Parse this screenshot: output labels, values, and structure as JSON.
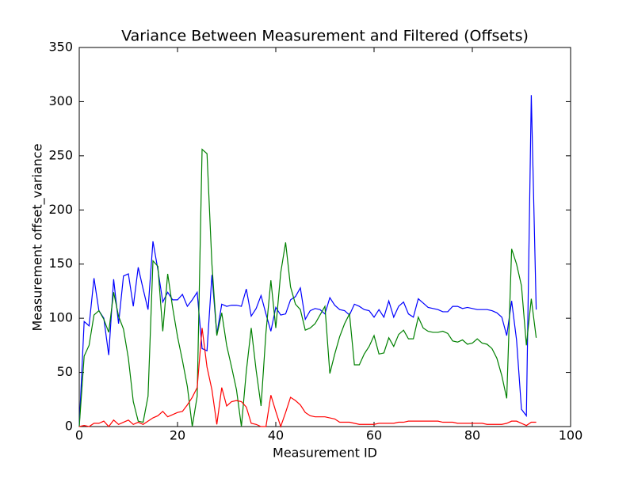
{
  "chart_data": {
    "type": "line",
    "title": "Variance Between Measurement and Filtered (Offsets)",
    "xlabel": "Measurement ID",
    "ylabel": "Measurement offset_variance",
    "x": [
      0,
      1,
      2,
      3,
      4,
      5,
      6,
      7,
      8,
      9,
      10,
      11,
      12,
      13,
      14,
      15,
      16,
      17,
      18,
      19,
      20,
      21,
      22,
      23,
      24,
      25,
      26,
      27,
      28,
      29,
      30,
      31,
      32,
      33,
      34,
      35,
      36,
      37,
      38,
      39,
      40,
      41,
      42,
      43,
      44,
      45,
      46,
      47,
      48,
      49,
      50,
      51,
      52,
      53,
      54,
      55,
      56,
      57,
      58,
      59,
      60,
      61,
      62,
      63,
      64,
      65,
      66,
      67,
      68,
      69,
      70,
      71,
      72,
      73,
      74,
      75,
      76,
      77,
      78,
      79,
      80,
      81,
      82,
      83,
      84,
      85,
      86,
      87,
      88,
      89,
      90,
      91,
      92,
      93
    ],
    "series": [
      {
        "color": "#0000ff",
        "values": [
          0,
          97,
          93,
          137,
          107,
          100,
          66,
          136,
          95,
          139,
          141,
          111,
          147,
          127,
          108,
          171,
          145,
          115,
          124,
          117,
          117,
          122,
          111,
          117,
          124,
          72,
          70,
          140,
          85,
          113,
          111,
          112,
          112,
          111,
          127,
          102,
          109,
          121,
          104,
          88,
          110,
          103,
          104,
          117,
          120,
          128,
          99,
          107,
          109,
          108,
          104,
          119,
          112,
          108,
          107,
          103,
          113,
          111,
          108,
          107,
          101,
          108,
          101,
          116,
          101,
          111,
          115,
          104,
          101,
          118,
          114,
          110,
          109,
          108,
          106,
          106,
          111,
          111,
          109,
          110,
          109,
          108,
          108,
          108,
          107,
          105,
          101,
          84,
          116,
          80,
          16,
          10,
          306,
          108
        ]
      },
      {
        "color": "#008000",
        "values": [
          0,
          65,
          75,
          103,
          107,
          99,
          87,
          124,
          102,
          90,
          63,
          23,
          5,
          4,
          28,
          153,
          148,
          88,
          141,
          110,
          83,
          61,
          37,
          0,
          28,
          256,
          252,
          150,
          84,
          105,
          75,
          55,
          34,
          0,
          51,
          91,
          52,
          19,
          87,
          135,
          91,
          142,
          170,
          129,
          113,
          108,
          89,
          91,
          95,
          103,
          111,
          49,
          67,
          83,
          95,
          104,
          57,
          57,
          67,
          74,
          84,
          67,
          68,
          82,
          74,
          85,
          89,
          81,
          81,
          101,
          91,
          88,
          87,
          87,
          88,
          86,
          79,
          78,
          80,
          76,
          77,
          81,
          77,
          76,
          72,
          63,
          47,
          26,
          164,
          150,
          130,
          75,
          118,
          82
        ]
      },
      {
        "color": "#ff0000",
        "values": [
          0,
          1,
          0,
          3,
          3,
          5,
          0,
          6,
          2,
          4,
          6,
          2,
          4,
          2,
          5,
          8,
          10,
          14,
          9,
          11,
          13,
          14,
          20,
          27,
          36,
          91,
          55,
          34,
          2,
          36,
          19,
          23,
          24,
          23,
          18,
          3,
          2,
          0,
          0,
          29,
          14,
          0,
          13,
          27,
          24,
          20,
          13,
          10,
          9,
          9,
          9,
          8,
          7,
          4,
          4,
          4,
          3,
          2,
          2,
          2,
          2,
          3,
          3,
          3,
          3,
          4,
          4,
          5,
          5,
          5,
          5,
          5,
          5,
          5,
          4,
          4,
          4,
          3,
          3,
          3,
          3,
          3,
          3,
          2,
          2,
          2,
          2,
          3,
          5,
          5,
          3,
          1,
          4,
          4
        ]
      }
    ],
    "xlim": [
      0,
      100
    ],
    "xticks": [
      0,
      20,
      40,
      60,
      80,
      100
    ],
    "ylim": [
      0,
      350
    ],
    "yticks": [
      0,
      50,
      100,
      150,
      200,
      250,
      300,
      350
    ]
  }
}
